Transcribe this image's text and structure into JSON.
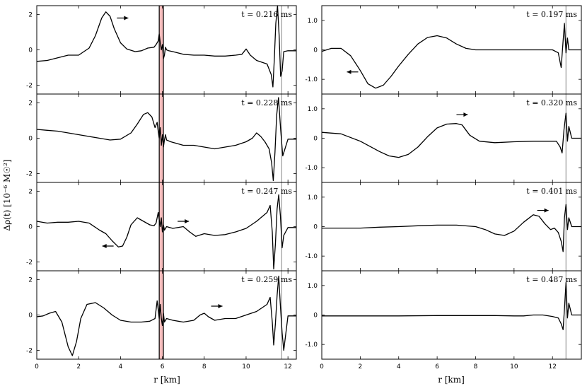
{
  "chart_data": [
    {
      "type": "line",
      "panel": "left-1",
      "t_label": "t = 0.216 ms",
      "arrow": {
        "x": 4.1,
        "y": 1.8,
        "dir": "right"
      },
      "x": [
        0,
        0.5,
        1,
        1.5,
        2,
        2.5,
        2.8,
        3.1,
        3.3,
        3.5,
        3.7,
        4.0,
        4.3,
        4.7,
        5.0,
        5.3,
        5.6,
        5.7,
        5.8,
        5.85,
        5.9,
        5.95,
        6.0,
        6.05,
        6.1,
        6.15,
        6.2,
        6.3,
        6.5,
        7.0,
        7.5,
        8.0,
        8.5,
        9.0,
        9.5,
        9.8,
        10.0,
        10.2,
        10.5,
        11.0,
        11.2,
        11.28,
        11.35,
        11.42,
        11.5,
        11.58,
        11.65,
        11.72,
        11.8,
        12.0,
        12.4
      ],
      "y": [
        -0.65,
        -0.6,
        -0.45,
        -0.3,
        -0.3,
        0.1,
        0.8,
        1.8,
        2.15,
        1.9,
        1.2,
        0.4,
        0.05,
        -0.1,
        -0.05,
        0.1,
        0.15,
        0.3,
        0.5,
        0.9,
        0.4,
        0.0,
        0.3,
        -0.5,
        -0.3,
        0.15,
        0.0,
        -0.05,
        -0.1,
        -0.25,
        -0.3,
        -0.3,
        -0.35,
        -0.35,
        -0.3,
        -0.25,
        0.05,
        -0.3,
        -0.6,
        -0.8,
        -1.4,
        -2.1,
        -0.5,
        1.5,
        2.5,
        0.8,
        -1.5,
        -1.2,
        -0.1,
        -0.05,
        -0.05
      ],
      "xlim": [
        0,
        12.4
      ],
      "ylim": [
        -2.5,
        2.5
      ],
      "xticks": [
        0,
        2,
        4,
        6,
        8,
        10,
        12
      ],
      "yticks": [
        2,
        0,
        -2
      ],
      "ytick_labels": [
        "2",
        "0",
        "-2"
      ],
      "vlines": [
        11.7
      ]
    },
    {
      "type": "line",
      "panel": "left-2",
      "t_label": "t = 0.228 ms",
      "arrow": null,
      "x": [
        0,
        0.5,
        1,
        1.5,
        2,
        2.5,
        3,
        3.5,
        4,
        4.5,
        4.8,
        5.1,
        5.3,
        5.5,
        5.65,
        5.75,
        5.8,
        5.85,
        5.9,
        5.95,
        6.0,
        6.05,
        6.1,
        6.15,
        6.2,
        6.4,
        7,
        7.5,
        8,
        8.5,
        9,
        9.5,
        10,
        10.3,
        10.5,
        10.7,
        10.9,
        11.1,
        11.22,
        11.3,
        11.38,
        11.46,
        11.55,
        11.65,
        11.75,
        12.0,
        12.4
      ],
      "y": [
        0.5,
        0.45,
        0.4,
        0.3,
        0.2,
        0.1,
        0.0,
        -0.1,
        -0.05,
        0.3,
        0.8,
        1.35,
        1.45,
        1.2,
        0.6,
        0.9,
        0.4,
        0.0,
        0.6,
        -0.4,
        0.2,
        -0.5,
        -0.1,
        0.2,
        -0.1,
        -0.2,
        -0.4,
        -0.4,
        -0.5,
        -0.6,
        -0.5,
        -0.4,
        -0.2,
        0.0,
        0.3,
        0.1,
        -0.2,
        -0.6,
        -1.4,
        -2.4,
        -0.8,
        1.3,
        2.3,
        0.5,
        -1.0,
        -0.05,
        -0.05
      ],
      "xlim": [
        0,
        12.4
      ],
      "ylim": [
        -2.5,
        2.5
      ],
      "xticks": [
        0,
        2,
        4,
        6,
        8,
        10,
        12
      ],
      "yticks": [
        2,
        0,
        -2
      ],
      "ytick_labels": [
        "2",
        "0",
        "-2"
      ],
      "vlines": [
        11.7
      ]
    },
    {
      "type": "line",
      "panel": "left-3",
      "t_label": "t = 0.247 ms",
      "arrow": null,
      "arrows": [
        {
          "x": 3.4,
          "y": -1.1,
          "dir": "left"
        },
        {
          "x": 7.0,
          "y": 0.3,
          "dir": "right"
        }
      ],
      "x": [
        0,
        0.5,
        1,
        1.5,
        2,
        2.5,
        3,
        3.3,
        3.6,
        3.9,
        4.1,
        4.3,
        4.5,
        4.8,
        5.1,
        5.4,
        5.6,
        5.7,
        5.8,
        5.85,
        5.9,
        5.95,
        6.0,
        6.05,
        6.1,
        6.2,
        6.5,
        7.0,
        7.3,
        7.6,
        8.0,
        8.5,
        9,
        9.5,
        10,
        10.5,
        11.0,
        11.15,
        11.25,
        11.32,
        11.4,
        11.48,
        11.56,
        11.64,
        11.72,
        11.8,
        12.0,
        12.4
      ],
      "y": [
        0.3,
        0.2,
        0.25,
        0.25,
        0.3,
        0.2,
        -0.2,
        -0.4,
        -0.8,
        -1.15,
        -1.1,
        -0.6,
        0.1,
        0.5,
        0.3,
        0.1,
        0.05,
        0.2,
        0.8,
        0.4,
        0.0,
        0.5,
        -0.3,
        0.1,
        -0.2,
        0.0,
        -0.1,
        0.0,
        -0.3,
        -0.55,
        -0.4,
        -0.5,
        -0.45,
        -0.3,
        -0.1,
        0.3,
        0.8,
        1.2,
        -0.3,
        -2.4,
        -1.0,
        1.0,
        1.8,
        0.6,
        -1.2,
        -0.5,
        -0.05,
        -0.05
      ],
      "xlim": [
        0,
        12.4
      ],
      "ylim": [
        -2.5,
        2.5
      ],
      "xticks": [
        0,
        2,
        4,
        6,
        8,
        10,
        12
      ],
      "yticks": [
        2,
        0,
        -2
      ],
      "ytick_labels": [
        "2",
        "0",
        "-2"
      ],
      "vlines": [
        11.7
      ]
    },
    {
      "type": "line",
      "panel": "left-4",
      "t_label": "t = 0.259 ms",
      "arrow": null,
      "arrows": [
        {
          "x": 8.6,
          "y": 0.5,
          "dir": "right"
        }
      ],
      "x": [
        0,
        0.3,
        0.6,
        0.9,
        1.2,
        1.5,
        1.7,
        1.9,
        2.1,
        2.4,
        2.8,
        3.2,
        3.6,
        4.0,
        4.5,
        5.0,
        5.4,
        5.65,
        5.75,
        5.8,
        5.85,
        5.9,
        5.95,
        6.0,
        6.05,
        6.1,
        6.2,
        6.5,
        7,
        7.5,
        7.8,
        8.0,
        8.2,
        8.5,
        9,
        9.5,
        10,
        10.5,
        11.0,
        11.15,
        11.25,
        11.32,
        11.4,
        11.48,
        11.56,
        11.64,
        11.72,
        11.8,
        12.0,
        12.4
      ],
      "y": [
        -0.1,
        -0.05,
        0.1,
        0.2,
        -0.4,
        -1.8,
        -2.3,
        -1.5,
        -0.2,
        0.6,
        0.7,
        0.4,
        0.0,
        -0.3,
        -0.4,
        -0.4,
        -0.35,
        -0.2,
        0.8,
        0.3,
        -0.2,
        0.6,
        -0.2,
        -0.6,
        0.1,
        -0.4,
        -0.2,
        -0.3,
        -0.4,
        -0.3,
        0.0,
        0.1,
        -0.1,
        -0.3,
        -0.2,
        -0.2,
        0.0,
        0.2,
        0.6,
        1.0,
        -0.4,
        -1.7,
        -0.5,
        1.1,
        2.2,
        0.5,
        -1.0,
        -2.0,
        -0.05,
        -0.05
      ],
      "xlim": [
        0,
        12.4
      ],
      "ylim": [
        -2.5,
        2.5
      ],
      "xticks": [
        0,
        2,
        4,
        6,
        8,
        10,
        12
      ],
      "yticks": [
        2,
        0,
        -2
      ],
      "ytick_labels": [
        "2",
        "0",
        "-2"
      ],
      "vlines": [
        11.7
      ]
    },
    {
      "type": "line",
      "panel": "right-1",
      "t_label": "t = 0.197 ms",
      "arrows": [
        {
          "x": 1.6,
          "y": -0.75,
          "dir": "left"
        }
      ],
      "x": [
        0,
        0.5,
        1,
        1.5,
        2,
        2.4,
        2.8,
        3.2,
        3.6,
        4.0,
        4.5,
        5.0,
        5.5,
        6.0,
        6.5,
        7.0,
        7.5,
        8.0,
        9,
        10,
        11,
        11.5,
        12,
        12.3,
        12.45,
        12.55,
        12.62,
        12.7,
        12.78,
        12.85,
        13.0,
        13.5
      ],
      "y": [
        -0.05,
        0.05,
        0.05,
        -0.2,
        -0.7,
        -1.15,
        -1.3,
        -1.2,
        -0.9,
        -0.55,
        -0.15,
        0.2,
        0.42,
        0.48,
        0.4,
        0.2,
        0.05,
        0.0,
        0.0,
        0.0,
        0.0,
        0.0,
        0.0,
        -0.1,
        -0.6,
        0.3,
        0.9,
        -0.1,
        0.4,
        0.0,
        0.0,
        0.0
      ],
      "xlim": [
        0,
        13.5
      ],
      "ylim": [
        -1.5,
        1.5
      ],
      "xticks": [
        0,
        2,
        4,
        6,
        8,
        10,
        12
      ],
      "yticks": [
        1.0,
        0,
        -1.0
      ],
      "ytick_labels": [
        "1.0",
        "0",
        "-1.0"
      ],
      "vlines": [
        12.7
      ]
    },
    {
      "type": "line",
      "panel": "right-2",
      "t_label": "t = 0.320 ms",
      "arrows": [
        {
          "x": 7.3,
          "y": 0.8,
          "dir": "right"
        }
      ],
      "x": [
        0,
        1,
        2,
        3,
        3.5,
        4,
        4.5,
        5,
        5.5,
        6,
        6.5,
        7,
        7.3,
        7.7,
        8.2,
        9,
        10,
        11,
        11.8,
        12.2,
        12.4,
        12.5,
        12.6,
        12.7,
        12.78,
        12.85,
        13.0,
        13.5
      ],
      "y": [
        0.2,
        0.15,
        -0.1,
        -0.45,
        -0.6,
        -0.65,
        -0.55,
        -0.3,
        0.05,
        0.35,
        0.48,
        0.5,
        0.45,
        0.1,
        -0.1,
        -0.15,
        -0.12,
        -0.1,
        -0.1,
        -0.1,
        -0.3,
        -0.5,
        0.3,
        0.85,
        -0.1,
        0.4,
        0.0,
        0.0
      ],
      "xlim": [
        0,
        13.5
      ],
      "ylim": [
        -1.5,
        1.5
      ],
      "xticks": [
        0,
        2,
        4,
        6,
        8,
        10,
        12
      ],
      "yticks": [
        1.0,
        0,
        -1.0
      ],
      "ytick_labels": [
        "1.0",
        "0",
        "-1.0"
      ],
      "vlines": [
        12.7
      ]
    },
    {
      "type": "line",
      "panel": "right-3",
      "t_label": "t = 0.401 ms",
      "arrows": [
        {
          "x": 11.5,
          "y": 0.55,
          "dir": "right"
        }
      ],
      "x": [
        0,
        1,
        2,
        3,
        4,
        5,
        6,
        7,
        8,
        8.5,
        9,
        9.5,
        10,
        10.5,
        11,
        11.3,
        11.6,
        11.9,
        12.1,
        12.3,
        12.45,
        12.55,
        12.62,
        12.7,
        12.78,
        12.85,
        13.0,
        13.5
      ],
      "y": [
        -0.05,
        -0.05,
        -0.05,
        -0.02,
        0.0,
        0.03,
        0.05,
        0.05,
        0.0,
        -0.1,
        -0.25,
        -0.3,
        -0.15,
        0.15,
        0.4,
        0.35,
        0.1,
        -0.1,
        -0.05,
        -0.2,
        -0.5,
        -0.85,
        0.3,
        0.75,
        -0.1,
        0.3,
        0.0,
        0.0
      ],
      "xlim": [
        0,
        13.5
      ],
      "ylim": [
        -1.5,
        1.5
      ],
      "xticks": [
        0,
        2,
        4,
        6,
        8,
        10,
        12
      ],
      "yticks": [
        1.0,
        0,
        -1.0
      ],
      "ytick_labels": [
        "1.0",
        "0",
        "-1.0"
      ],
      "vlines": [
        12.7
      ]
    },
    {
      "type": "line",
      "panel": "right-4",
      "t_label": "t = 0.487 ms",
      "arrows": [],
      "x": [
        0,
        2,
        4,
        6,
        8,
        9,
        10,
        10.5,
        11,
        11.5,
        12,
        12.3,
        12.45,
        12.55,
        12.62,
        12.7,
        12.78,
        12.85,
        13.0,
        13.5
      ],
      "y": [
        -0.03,
        -0.03,
        -0.03,
        -0.02,
        -0.02,
        -0.02,
        -0.03,
        -0.03,
        0.0,
        0.0,
        -0.05,
        -0.1,
        -0.3,
        -0.5,
        0.2,
        1.1,
        -0.1,
        0.4,
        0.0,
        0.0
      ],
      "xlim": [
        0,
        13.5
      ],
      "ylim": [
        -1.5,
        1.5
      ],
      "xticks": [
        0,
        2,
        4,
        6,
        8,
        10,
        12
      ],
      "yticks": [
        1.0,
        0,
        -1.0
      ],
      "ytick_labels": [
        "1.0",
        "0",
        "-1.0"
      ],
      "vlines": [
        12.7
      ]
    }
  ],
  "figure": {
    "ylabel": "Δρ(t) [10⁻⁶ M☉²]",
    "xlabel_left": "r [km]",
    "xlabel_right": "r [km]",
    "red_band": {
      "x0": 5.85,
      "x1": 6.05,
      "color": "#e86a6a"
    },
    "colors": {
      "line": "#000000",
      "vline": "#888888",
      "band_edge": "#000000"
    }
  }
}
